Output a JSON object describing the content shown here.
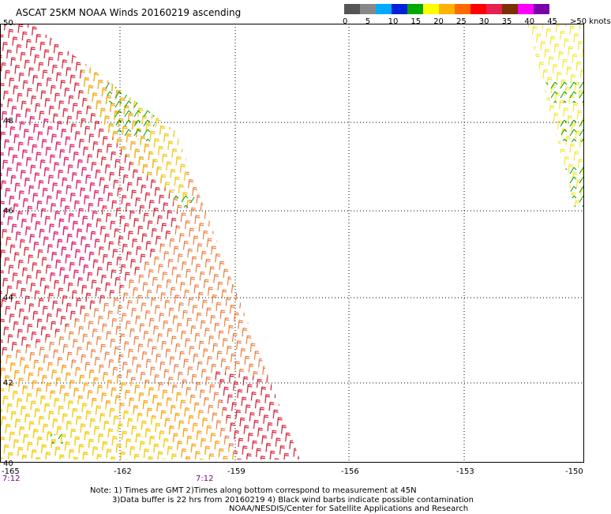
{
  "title": "ASCAT 25KM NOAA Winds 20160219 ascending",
  "colorbar": {
    "colors": [
      "#555555",
      "#888888",
      "#00aaff",
      "#0022dd",
      "#00aa00",
      "#ffff00",
      "#ffb300",
      "#ff6a00",
      "#ff0000",
      "#e62050",
      "#7a3000",
      "#ff00ff",
      "#7a00aa"
    ],
    "ticks": [
      "0",
      "5",
      "10",
      "15",
      "20",
      "25",
      "30",
      "35",
      "40",
      "45",
      ">50 knots"
    ]
  },
  "map": {
    "lat_labels": [
      "50",
      "48",
      "46",
      "44",
      "42",
      "40"
    ],
    "lon_labels": [
      "-165",
      "-162",
      "-159",
      "-156",
      "-153",
      "-150"
    ],
    "time_labels": [
      "7:12",
      "7:12"
    ]
  },
  "notes": [
    "Note: 1) Times are GMT 2)Times along bottom correspond to measurement at 45N",
    "3)Data buffer is 22 hrs from 20160219 4) Black wind barbs indicate possible contamination",
    "NOAA/NESDIS/Center for Satellite Applications and Research"
  ]
}
